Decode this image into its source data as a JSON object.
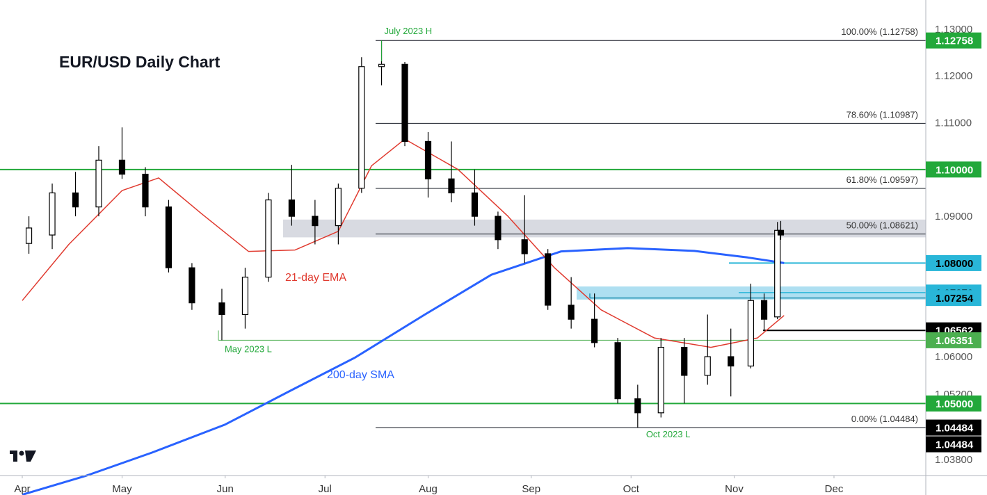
{
  "chart_data": {
    "type": "candlestick",
    "title": "EUR/USD Daily Chart",
    "instrument": "EUR/USD",
    "timeframe": "Daily",
    "ylim": [
      1.034,
      1.134
    ],
    "y_ticks": [
      "1.13000",
      "1.12000",
      "1.11000",
      "1.09000",
      "1.06000",
      "1.05200",
      "1.03800"
    ],
    "x_ticks": [
      "Apr",
      "May",
      "Jun",
      "Jul",
      "Aug",
      "Sep",
      "Oct",
      "Nov",
      "Dec"
    ],
    "grid": false,
    "horizontal_levels": [
      {
        "price": 1.1,
        "label": "1.10000",
        "color": "#22a83a"
      },
      {
        "price": 1.05,
        "label": "1.05000",
        "color": "#22a83a"
      }
    ],
    "price_tags": [
      {
        "price": 1.12758,
        "label": "1.12758",
        "bg": "#22a83a",
        "fg": "#ffffff"
      },
      {
        "price": 1.1,
        "label": "1.10000",
        "bg": "#22a83a",
        "fg": "#ffffff"
      },
      {
        "price": 1.08,
        "label": "1.08000",
        "bg": "#29b6d8",
        "fg": "#000000"
      },
      {
        "price": 1.0737,
        "label": "1.07370",
        "bg": "#29b6d8",
        "fg": "#000000"
      },
      {
        "price": 1.07254,
        "label": "1.07254",
        "bg": "#29b6d8",
        "fg": "#000000"
      },
      {
        "price": 1.06562,
        "label": "1.06562",
        "bg": "#000000",
        "fg": "#ffffff"
      },
      {
        "price": 1.06351,
        "label": "1.06351",
        "bg": "#4caf50",
        "fg": "#ffffff"
      },
      {
        "price": 1.05,
        "label": "1.05000",
        "bg": "#22a83a",
        "fg": "#ffffff"
      },
      {
        "price": 1.04484,
        "label": "1.04484",
        "bg": "#000000",
        "fg": "#ffffff"
      },
      {
        "price": 1.04484,
        "label": "1.04484",
        "bg": "#000000",
        "fg": "#ffffff"
      }
    ],
    "fibonacci": [
      {
        "label": "100.00% (1.12758)",
        "price": 1.12758
      },
      {
        "label": "78.60% (1.10987)",
        "price": 1.10987
      },
      {
        "label": "61.80% (1.09597)",
        "price": 1.09597
      },
      {
        "label": "50.00% (1.08621)",
        "price": 1.08621
      },
      {
        "label": "0.00% (1.04484)",
        "price": 1.04484
      }
    ],
    "zones": [
      {
        "from": 1.0855,
        "to": 1.0893,
        "color": "grey"
      },
      {
        "from": 1.0722,
        "to": 1.075,
        "color": "light-blue"
      }
    ],
    "annotations": [
      {
        "text": "July 2023 H",
        "price": 1.12758,
        "date": "2023-07-18"
      },
      {
        "text": "May 2023 L",
        "price": 1.06351,
        "date": "2023-05-31"
      },
      {
        "text": "Oct 2023 L",
        "price": 1.04484,
        "date": "2023-10-03"
      }
    ],
    "indicators": [
      {
        "name": "21-day EMA",
        "color": "#e03a2f"
      },
      {
        "name": "200-day SMA",
        "color": "#2962ff"
      }
    ],
    "sma200": [
      {
        "date": "2023-04-01",
        "value": 1.0305
      },
      {
        "date": "2023-04-20",
        "value": 1.0345
      },
      {
        "date": "2023-05-10",
        "value": 1.0395
      },
      {
        "date": "2023-06-01",
        "value": 1.0455
      },
      {
        "date": "2023-06-20",
        "value": 1.0525
      },
      {
        "date": "2023-07-10",
        "value": 1.0598
      },
      {
        "date": "2023-07-31",
        "value": 1.069
      },
      {
        "date": "2023-08-20",
        "value": 1.0775
      },
      {
        "date": "2023-09-10",
        "value": 1.0825
      },
      {
        "date": "2023-09-30",
        "value": 1.0832
      },
      {
        "date": "2023-10-20",
        "value": 1.0826
      },
      {
        "date": "2023-11-05",
        "value": 1.0812
      },
      {
        "date": "2023-11-16",
        "value": 1.08
      }
    ],
    "ema21": [
      {
        "date": "2023-04-01",
        "value": 1.072
      },
      {
        "date": "2023-04-15",
        "value": 1.084
      },
      {
        "date": "2023-05-01",
        "value": 1.0955
      },
      {
        "date": "2023-05-12",
        "value": 1.0982
      },
      {
        "date": "2023-05-25",
        "value": 1.0905
      },
      {
        "date": "2023-06-08",
        "value": 1.0825
      },
      {
        "date": "2023-06-22",
        "value": 1.0828
      },
      {
        "date": "2023-07-05",
        "value": 1.0868
      },
      {
        "date": "2023-07-15",
        "value": 1.1008
      },
      {
        "date": "2023-07-25",
        "value": 1.1065
      },
      {
        "date": "2023-08-10",
        "value": 1.1
      },
      {
        "date": "2023-08-25",
        "value": 1.09
      },
      {
        "date": "2023-09-08",
        "value": 1.079
      },
      {
        "date": "2023-09-22",
        "value": 1.07
      },
      {
        "date": "2023-10-08",
        "value": 1.064
      },
      {
        "date": "2023-10-25",
        "value": 1.062
      },
      {
        "date": "2023-11-08",
        "value": 1.064
      },
      {
        "date": "2023-11-16",
        "value": 1.0688
      }
    ],
    "candles": [
      {
        "date": "2023-04-03",
        "o": 1.0842,
        "h": 1.09,
        "l": 1.082,
        "c": 1.0875
      },
      {
        "date": "2023-04-10",
        "o": 1.086,
        "h": 1.097,
        "l": 1.083,
        "c": 1.095
      },
      {
        "date": "2023-04-17",
        "o": 1.095,
        "h": 1.0995,
        "l": 1.09,
        "c": 1.092
      },
      {
        "date": "2023-04-24",
        "o": 1.092,
        "h": 1.105,
        "l": 1.09,
        "c": 1.102
      },
      {
        "date": "2023-05-01",
        "o": 1.102,
        "h": 1.109,
        "l": 1.098,
        "c": 1.099
      },
      {
        "date": "2023-05-08",
        "o": 1.099,
        "h": 1.1005,
        "l": 1.09,
        "c": 1.092
      },
      {
        "date": "2023-05-15",
        "o": 1.092,
        "h": 1.0935,
        "l": 1.078,
        "c": 1.079
      },
      {
        "date": "2023-05-22",
        "o": 1.079,
        "h": 1.08,
        "l": 1.07,
        "c": 1.0715
      },
      {
        "date": "2023-05-31",
        "o": 1.0715,
        "h": 1.0745,
        "l": 1.0635,
        "c": 1.069
      },
      {
        "date": "2023-06-07",
        "o": 1.069,
        "h": 1.079,
        "l": 1.066,
        "c": 1.077
      },
      {
        "date": "2023-06-14",
        "o": 1.077,
        "h": 1.095,
        "l": 1.076,
        "c": 1.0935
      },
      {
        "date": "2023-06-21",
        "o": 1.0935,
        "h": 1.101,
        "l": 1.088,
        "c": 1.09
      },
      {
        "date": "2023-06-28",
        "o": 1.09,
        "h": 1.0935,
        "l": 1.084,
        "c": 1.088
      },
      {
        "date": "2023-07-05",
        "o": 1.088,
        "h": 1.097,
        "l": 1.084,
        "c": 1.096
      },
      {
        "date": "2023-07-12",
        "o": 1.096,
        "h": 1.124,
        "l": 1.095,
        "c": 1.122
      },
      {
        "date": "2023-07-18",
        "o": 1.122,
        "h": 1.12758,
        "l": 1.118,
        "c": 1.1225
      },
      {
        "date": "2023-07-25",
        "o": 1.1225,
        "h": 1.123,
        "l": 1.105,
        "c": 1.106
      },
      {
        "date": "2023-08-01",
        "o": 1.106,
        "h": 1.108,
        "l": 1.094,
        "c": 1.098
      },
      {
        "date": "2023-08-08",
        "o": 1.098,
        "h": 1.106,
        "l": 1.093,
        "c": 1.095
      },
      {
        "date": "2023-08-15",
        "o": 1.095,
        "h": 1.1,
        "l": 1.088,
        "c": 1.09
      },
      {
        "date": "2023-08-22",
        "o": 1.09,
        "h": 1.091,
        "l": 1.083,
        "c": 1.085
      },
      {
        "date": "2023-08-30",
        "o": 1.085,
        "h": 1.0945,
        "l": 1.08,
        "c": 1.082
      },
      {
        "date": "2023-09-06",
        "o": 1.082,
        "h": 1.083,
        "l": 1.07,
        "c": 1.071
      },
      {
        "date": "2023-09-13",
        "o": 1.071,
        "h": 1.077,
        "l": 1.066,
        "c": 1.068
      },
      {
        "date": "2023-09-20",
        "o": 1.068,
        "h": 1.0735,
        "l": 1.062,
        "c": 1.063
      },
      {
        "date": "2023-09-27",
        "o": 1.063,
        "h": 1.064,
        "l": 1.05,
        "c": 1.051
      },
      {
        "date": "2023-10-03",
        "o": 1.051,
        "h": 1.054,
        "l": 1.04484,
        "c": 1.048
      },
      {
        "date": "2023-10-10",
        "o": 1.048,
        "h": 1.064,
        "l": 1.047,
        "c": 1.062
      },
      {
        "date": "2023-10-17",
        "o": 1.062,
        "h": 1.064,
        "l": 1.05,
        "c": 1.056
      },
      {
        "date": "2023-10-24",
        "o": 1.056,
        "h": 1.069,
        "l": 1.054,
        "c": 1.06
      },
      {
        "date": "2023-10-31",
        "o": 1.06,
        "h": 1.066,
        "l": 1.0515,
        "c": 1.058
      },
      {
        "date": "2023-11-06",
        "o": 1.058,
        "h": 1.0756,
        "l": 1.0575,
        "c": 1.072
      },
      {
        "date": "2023-11-10",
        "o": 1.072,
        "h": 1.0735,
        "l": 1.0656,
        "c": 1.068
      },
      {
        "date": "2023-11-14",
        "o": 1.0685,
        "h": 1.0888,
        "l": 1.068,
        "c": 1.087
      },
      {
        "date": "2023-11-15",
        "o": 1.087,
        "h": 1.089,
        "l": 1.085,
        "c": 1.086
      }
    ]
  }
}
